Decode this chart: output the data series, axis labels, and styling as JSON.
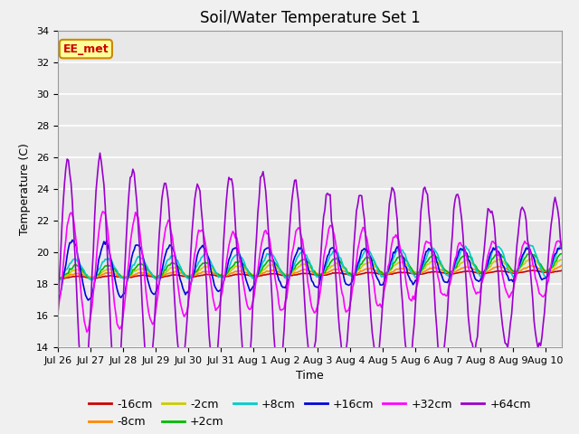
{
  "title": "Soil/Water Temperature Set 1",
  "xlabel": "Time",
  "ylabel": "Temperature (C)",
  "ylim": [
    14,
    34
  ],
  "yticks": [
    14,
    16,
    18,
    20,
    22,
    24,
    26,
    28,
    30,
    32,
    34
  ],
  "xlim_days": [
    0,
    15.5
  ],
  "xtick_labels": [
    "Jul 26",
    "Jul 27",
    "Jul 28",
    "Jul 29",
    "Jul 30",
    "Jul 31",
    "Aug 1",
    "Aug 2",
    "Aug 3",
    "Aug 4",
    "Aug 5",
    "Aug 6",
    "Aug 7",
    "Aug 8",
    "Aug 9",
    "Aug 10"
  ],
  "xtick_positions": [
    0,
    1,
    2,
    3,
    4,
    5,
    6,
    7,
    8,
    9,
    10,
    11,
    12,
    13,
    14,
    15
  ],
  "colors": {
    "-16cm": "#cc0000",
    "-8cm": "#ff8800",
    "-2cm": "#cccc00",
    "+2cm": "#00bb00",
    "+8cm": "#00cccc",
    "+16cm": "#0000dd",
    "+32cm": "#ff00ff",
    "+64cm": "#9900cc"
  },
  "annotation_text": "EE_met",
  "annotation_color": "#cc0000",
  "annotation_bg": "#ffff99",
  "annotation_border": "#cc8800",
  "plot_bg_color": "#e8e8e8",
  "title_fontsize": 12,
  "label_fontsize": 9,
  "tick_fontsize": 8,
  "legend_fontsize": 9
}
